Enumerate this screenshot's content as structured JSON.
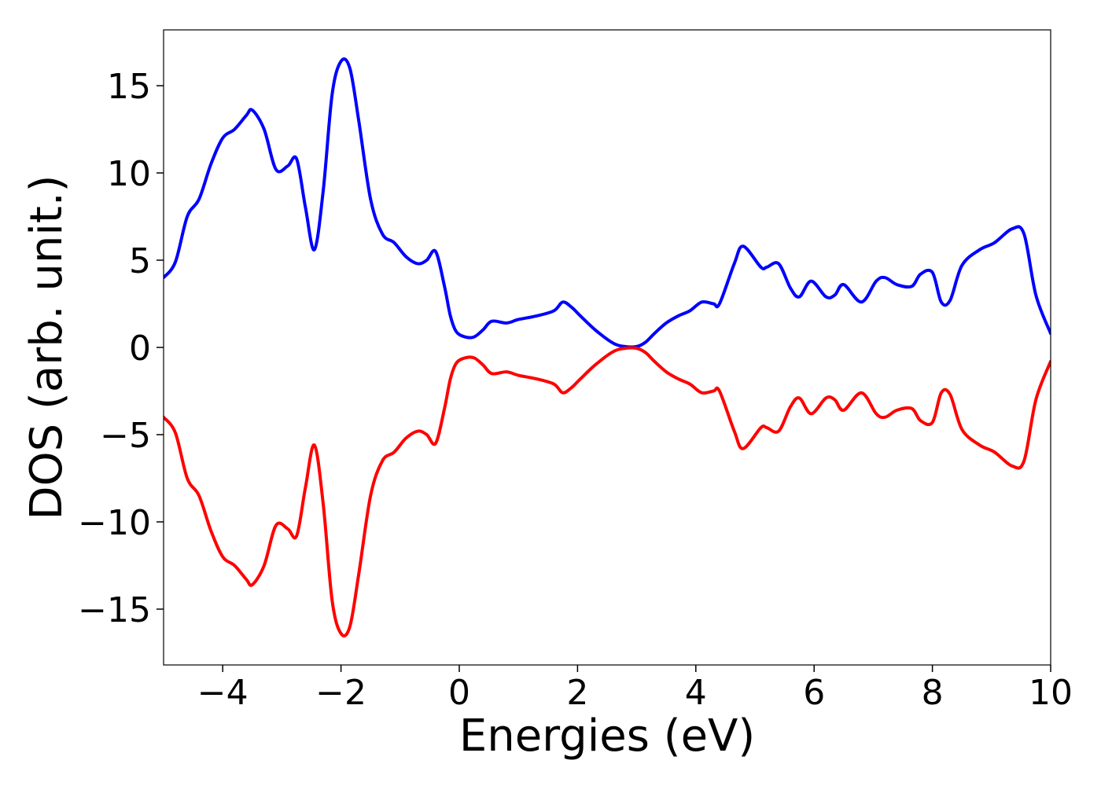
{
  "chart_data": {
    "type": "line",
    "xlabel": "Energies (eV)",
    "ylabel": "DOS (arb. unit.)",
    "xlim": [
      -5,
      10
    ],
    "ylim": [
      -18.2,
      18.2
    ],
    "grid": false,
    "xticks": [
      -4,
      -2,
      0,
      2,
      4,
      6,
      8,
      10
    ],
    "xtick_labels": [
      "−4",
      "−2",
      "0",
      "2",
      "4",
      "6",
      "8",
      "10"
    ],
    "yticks": [
      15,
      10,
      5,
      0,
      -5,
      -10,
      -15
    ],
    "ytick_labels": [
      "15",
      "10",
      "5",
      "0",
      "−5",
      "−10",
      "−15"
    ],
    "series": [
      {
        "color": "#0000ff",
        "x": [
          -5.0,
          -4.8,
          -4.6,
          -4.4,
          -4.2,
          -4.0,
          -3.8,
          -3.6,
          -3.5,
          -3.3,
          -3.1,
          -2.9,
          -2.75,
          -2.6,
          -2.45,
          -2.3,
          -2.15,
          -2.0,
          -1.85,
          -1.7,
          -1.5,
          -1.3,
          -1.1,
          -0.9,
          -0.7,
          -0.55,
          -0.4,
          -0.25,
          -0.15,
          -0.05,
          0.1,
          0.25,
          0.4,
          0.55,
          0.8,
          1.0,
          1.3,
          1.6,
          1.75,
          1.9,
          2.05,
          2.3,
          2.6,
          2.8,
          3.0,
          3.15,
          3.3,
          3.5,
          3.7,
          3.9,
          4.1,
          4.3,
          4.4,
          4.65,
          4.8,
          5.1,
          5.2,
          5.4,
          5.6,
          5.75,
          5.95,
          6.2,
          6.35,
          6.5,
          6.8,
          7.05,
          7.2,
          7.4,
          7.65,
          7.8,
          8.0,
          8.15,
          8.3,
          8.5,
          8.8,
          9.05,
          9.35,
          9.55,
          9.75,
          10.0
        ],
        "y": [
          4.0,
          4.9,
          7.5,
          8.5,
          10.5,
          12.0,
          12.5,
          13.3,
          13.6,
          12.5,
          10.2,
          10.4,
          10.8,
          8.0,
          5.6,
          9.0,
          14.5,
          16.4,
          16.0,
          13.0,
          8.5,
          6.5,
          6.0,
          5.2,
          4.8,
          5.0,
          5.5,
          3.5,
          1.8,
          0.9,
          0.6,
          0.6,
          1.0,
          1.5,
          1.4,
          1.6,
          1.8,
          2.1,
          2.6,
          2.3,
          1.8,
          1.0,
          0.25,
          0.05,
          0.05,
          0.3,
          0.8,
          1.4,
          1.8,
          2.1,
          2.6,
          2.5,
          2.5,
          4.8,
          5.8,
          4.6,
          4.6,
          4.8,
          3.4,
          2.9,
          3.8,
          2.9,
          3.0,
          3.6,
          2.6,
          3.8,
          4.0,
          3.6,
          3.5,
          4.2,
          4.3,
          2.6,
          2.7,
          4.7,
          5.6,
          6.0,
          6.8,
          6.5,
          3.0,
          0.8
        ]
      },
      {
        "color": "#ff0000",
        "x": [
          -5.0,
          -4.8,
          -4.6,
          -4.4,
          -4.2,
          -4.0,
          -3.8,
          -3.6,
          -3.5,
          -3.3,
          -3.1,
          -2.9,
          -2.75,
          -2.6,
          -2.45,
          -2.3,
          -2.15,
          -2.0,
          -1.85,
          -1.7,
          -1.5,
          -1.3,
          -1.1,
          -0.9,
          -0.7,
          -0.55,
          -0.4,
          -0.25,
          -0.15,
          -0.05,
          0.1,
          0.25,
          0.4,
          0.55,
          0.8,
          1.0,
          1.3,
          1.6,
          1.75,
          1.9,
          2.05,
          2.3,
          2.6,
          2.8,
          3.0,
          3.15,
          3.3,
          3.5,
          3.7,
          3.9,
          4.1,
          4.3,
          4.4,
          4.65,
          4.8,
          5.1,
          5.2,
          5.4,
          5.6,
          5.75,
          5.95,
          6.2,
          6.35,
          6.5,
          6.8,
          7.05,
          7.2,
          7.4,
          7.65,
          7.8,
          8.0,
          8.15,
          8.3,
          8.5,
          8.8,
          9.05,
          9.35,
          9.55,
          9.75,
          10.0
        ],
        "y": [
          -4.0,
          -4.9,
          -7.5,
          -8.5,
          -10.5,
          -12.0,
          -12.5,
          -13.3,
          -13.6,
          -12.5,
          -10.2,
          -10.4,
          -10.8,
          -8.0,
          -5.6,
          -9.0,
          -14.5,
          -16.4,
          -16.0,
          -13.0,
          -8.5,
          -6.5,
          -6.0,
          -5.2,
          -4.8,
          -5.0,
          -5.5,
          -3.5,
          -1.8,
          -0.9,
          -0.6,
          -0.6,
          -1.0,
          -1.5,
          -1.4,
          -1.6,
          -1.8,
          -2.1,
          -2.6,
          -2.3,
          -1.8,
          -1.0,
          -0.25,
          -0.05,
          -0.05,
          -0.3,
          -0.8,
          -1.4,
          -1.8,
          -2.1,
          -2.6,
          -2.5,
          -2.5,
          -4.8,
          -5.8,
          -4.6,
          -4.6,
          -4.8,
          -3.4,
          -2.9,
          -3.8,
          -2.9,
          -3.0,
          -3.6,
          -2.6,
          -3.8,
          -4.0,
          -3.6,
          -3.5,
          -4.2,
          -4.3,
          -2.6,
          -2.7,
          -4.7,
          -5.6,
          -6.0,
          -6.8,
          -6.5,
          -3.0,
          -0.8
        ]
      }
    ]
  }
}
